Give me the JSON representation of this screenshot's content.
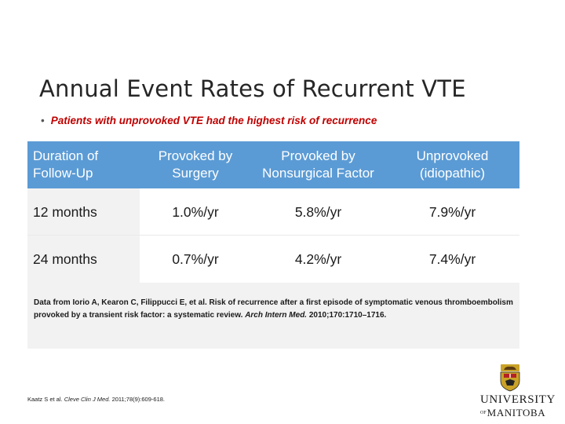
{
  "slide": {
    "title": "Annual Event Rates of Recurrent VTE",
    "bullet_marker": "•",
    "bullet": "Patients with unprovoked VTE had the highest risk of recurrence"
  },
  "table": {
    "headers": [
      "Duration of Follow-Up",
      "Provoked by Surgery",
      "Provoked by Nonsurgical Factor",
      "Unprovoked (idiopathic)"
    ],
    "rows": [
      [
        "12 months",
        "1.0%/yr",
        "5.8%/yr",
        "7.9%/yr"
      ],
      [
        "24 months",
        "0.7%/yr",
        "4.2%/yr",
        "7.4%/yr"
      ]
    ]
  },
  "source_note": {
    "text": "Data from Iorio A, Kearon C, Filippucci E, et al. Risk of recurrence after a first episode of symptomatic venous thromboembolism provoked by a transient risk factor: a systematic review.",
    "journal": "Arch Intern Med.",
    "details": "2010;170:1710–1716."
  },
  "citation": {
    "text": "Kaatz S et al.",
    "journal": "Cleve Clin J Med.",
    "details": "2011;78(9):609-618."
  },
  "logo": {
    "line1": "UNIVERSITY",
    "line2_prefix": "OF",
    "line2": "MANITOBA",
    "colors": {
      "crest_gold": "#c9a227",
      "crest_red": "#b22222",
      "crest_black": "#222222"
    }
  },
  "colors": {
    "header_bg": "#5b9bd5",
    "bullet_text": "#c00000"
  }
}
